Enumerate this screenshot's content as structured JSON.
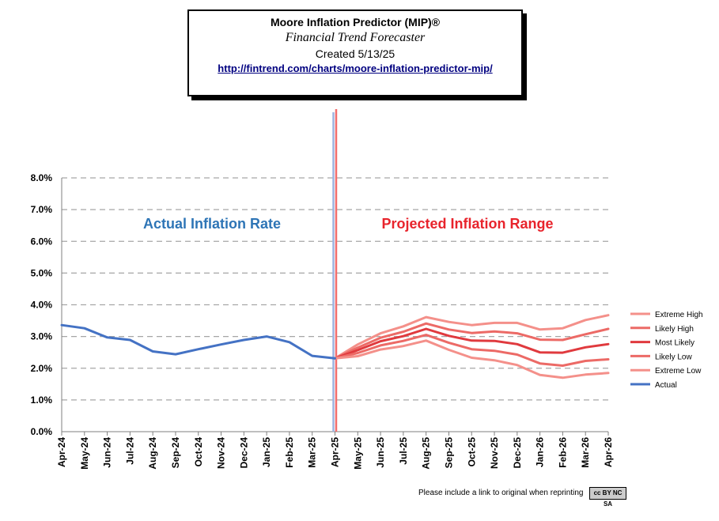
{
  "header": {
    "title": "Moore Inflation Predictor (MIP)®",
    "subtitle": "Financial Trend Forecaster",
    "created": "Created 5/13/25",
    "url": "http://fintrend.com/charts/moore-inflation-predictor-mip/"
  },
  "chart_data": {
    "type": "line",
    "categories": [
      "Apr-24",
      "May-24",
      "Jun-24",
      "Jul-24",
      "Aug-24",
      "Sep-24",
      "Oct-24",
      "Nov-24",
      "Dec-24",
      "Jan-25",
      "Feb-25",
      "Mar-25",
      "Apr-25",
      "May-25",
      "Jun-25",
      "Jul-25",
      "Aug-25",
      "Sep-25",
      "Oct-25",
      "Nov-25",
      "Dec-25",
      "Jan-26",
      "Feb-26",
      "Mar-26",
      "Apr-26"
    ],
    "ylim": [
      0,
      8
    ],
    "yticks": [
      "0.0%",
      "1.0%",
      "2.0%",
      "3.0%",
      "4.0%",
      "5.0%",
      "6.0%",
      "7.0%",
      "8.0%"
    ],
    "grid": true,
    "legend_position": "right",
    "annotations": {
      "actual_label": "Actual Inflation Rate",
      "projected_label": "Projected Inflation Range"
    },
    "series": [
      {
        "name": "Extreme High",
        "color": "#f4908a",
        "start": 12,
        "values": [
          null,
          null,
          null,
          null,
          null,
          null,
          null,
          null,
          null,
          null,
          null,
          null,
          2.31,
          2.75,
          3.1,
          3.32,
          3.61,
          3.46,
          3.36,
          3.43,
          3.43,
          3.22,
          3.26,
          3.52,
          3.67
        ]
      },
      {
        "name": "Likely High",
        "color": "#ec6a66",
        "start": 12,
        "values": [
          null,
          null,
          null,
          null,
          null,
          null,
          null,
          null,
          null,
          null,
          null,
          null,
          2.31,
          2.65,
          2.96,
          3.15,
          3.41,
          3.22,
          3.11,
          3.16,
          3.1,
          2.9,
          2.89,
          3.07,
          3.24
        ]
      },
      {
        "name": "Most Likely",
        "color": "#e03a3e",
        "start": 12,
        "values": [
          null,
          null,
          null,
          null,
          null,
          null,
          null,
          null,
          null,
          null,
          null,
          null,
          2.31,
          2.57,
          2.85,
          3.01,
          3.24,
          3.02,
          2.87,
          2.86,
          2.76,
          2.5,
          2.49,
          2.66,
          2.76
        ]
      },
      {
        "name": "Likely Low",
        "color": "#ec6a66",
        "start": 12,
        "values": [
          null,
          null,
          null,
          null,
          null,
          null,
          null,
          null,
          null,
          null,
          null,
          null,
          2.31,
          2.48,
          2.72,
          2.86,
          3.05,
          2.8,
          2.6,
          2.55,
          2.43,
          2.15,
          2.08,
          2.23,
          2.28
        ]
      },
      {
        "name": "Extreme Low",
        "color": "#f4908a",
        "start": 12,
        "values": [
          null,
          null,
          null,
          null,
          null,
          null,
          null,
          null,
          null,
          null,
          null,
          null,
          2.31,
          2.38,
          2.59,
          2.7,
          2.87,
          2.58,
          2.33,
          2.25,
          2.1,
          1.79,
          1.7,
          1.8,
          1.85
        ]
      },
      {
        "name": "Actual",
        "color": "#4472c4",
        "values": [
          3.36,
          3.26,
          2.97,
          2.89,
          2.53,
          2.44,
          2.6,
          2.75,
          2.89,
          3.0,
          2.82,
          2.39,
          2.31,
          null,
          null,
          null,
          null,
          null,
          null,
          null,
          null,
          null,
          null,
          null,
          null
        ]
      }
    ]
  },
  "footer": {
    "note": "Please include a link to original when reprinting",
    "badge": "cc BY NC SA"
  }
}
